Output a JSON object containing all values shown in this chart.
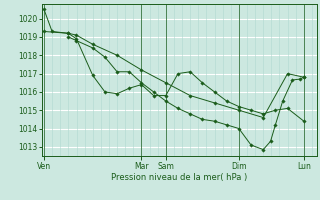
{
  "xlabel": "Pression niveau de la mer( hPa )",
  "bg_color": "#cce8e0",
  "grid_color_major": "#b0d8d0",
  "grid_color_white": "#ffffff",
  "line_color": "#1a5c1a",
  "ylim": [
    1012.5,
    1020.8
  ],
  "yticks": [
    1013,
    1014,
    1015,
    1016,
    1017,
    1018,
    1019,
    1020
  ],
  "day_labels": [
    "Ven",
    "Mar",
    "Sam",
    "Dim",
    "Lun"
  ],
  "day_positions": [
    0.0,
    4.0,
    5.0,
    8.0,
    10.67
  ],
  "xlim": [
    -0.1,
    11.2
  ],
  "series1_x": [
    0.0,
    0.33,
    1.0,
    1.33,
    2.0,
    2.5,
    3.0,
    3.5,
    4.0,
    4.5,
    5.0,
    5.5,
    6.0,
    6.5,
    7.0,
    7.5,
    8.0,
    8.5,
    9.0,
    9.5,
    10.0,
    10.67
  ],
  "series1_y": [
    1020.5,
    1019.3,
    1019.2,
    1018.9,
    1016.9,
    1016.0,
    1015.9,
    1016.2,
    1016.4,
    1015.8,
    1015.8,
    1017.0,
    1017.1,
    1016.5,
    1016.0,
    1015.5,
    1015.2,
    1015.0,
    1014.8,
    1015.0,
    1015.1,
    1014.4
  ],
  "series2_x": [
    0.0,
    1.0,
    1.33,
    2.0,
    3.0,
    4.0,
    5.0,
    6.0,
    7.0,
    8.0,
    9.0,
    10.0,
    10.67
  ],
  "series2_y": [
    1019.3,
    1019.2,
    1019.1,
    1018.6,
    1018.0,
    1017.2,
    1016.5,
    1015.8,
    1015.4,
    1015.0,
    1014.6,
    1017.0,
    1016.8
  ],
  "series3_x": [
    1.0,
    1.33,
    2.0,
    2.5,
    3.0,
    3.5,
    4.0,
    4.5,
    5.0,
    5.5,
    6.0,
    6.5,
    7.0,
    7.5,
    8.0,
    8.5,
    9.0,
    9.3,
    9.5,
    9.8,
    10.2,
    10.5,
    10.67
  ],
  "series3_y": [
    1019.0,
    1018.8,
    1018.4,
    1017.9,
    1017.1,
    1017.1,
    1016.5,
    1016.0,
    1015.5,
    1015.1,
    1014.8,
    1014.5,
    1014.4,
    1014.2,
    1014.0,
    1013.1,
    1012.85,
    1013.3,
    1014.2,
    1015.5,
    1016.65,
    1016.7,
    1016.8
  ],
  "vline_positions": [
    0.0,
    4.0,
    5.0,
    8.0,
    10.67
  ]
}
